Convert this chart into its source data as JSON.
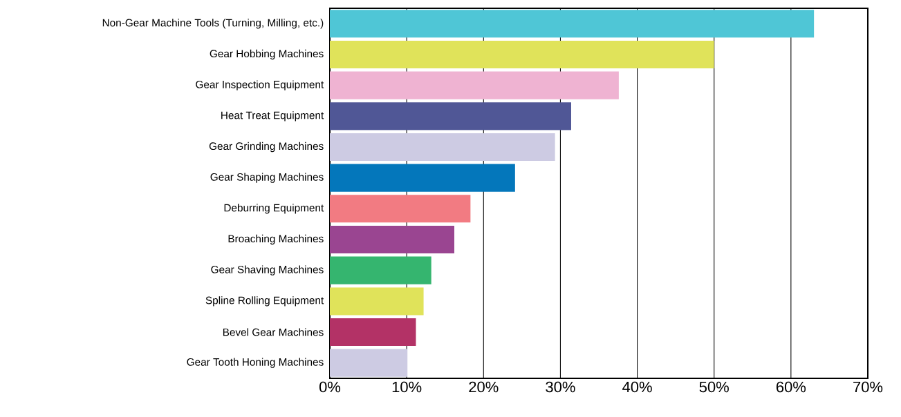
{
  "chart_data": {
    "type": "bar",
    "orientation": "horizontal",
    "categories": [
      "Non-Gear Machine Tools (Turning, Milling, etc.)",
      "Gear Hobbing Machines",
      "Gear Inspection Equipment",
      "Heat Treat Equipment",
      "Gear Grinding Machines",
      "Gear Shaping Machines",
      "Deburring Equipment",
      "Broaching Machines",
      "Gear Shaving Machines",
      "Spline Rolling Equipment",
      "Bevel Gear Machines",
      "Gear Tooth Honing Machines"
    ],
    "values": [
      63,
      50,
      37.6,
      31.4,
      29.3,
      24.1,
      18.3,
      16.2,
      13.2,
      12.2,
      11.2,
      10.1
    ],
    "colors": [
      "#4fc6d6",
      "#e0e35a",
      "#efb3d2",
      "#505796",
      "#cdcbe3",
      "#0477bb",
      "#f27b82",
      "#9a4591",
      "#35b56f",
      "#e0e35a",
      "#b33266",
      "#cdcbe3"
    ],
    "xlim": [
      0,
      70
    ],
    "xticks": [
      {
        "value": 0,
        "label": "0%"
      },
      {
        "value": 10,
        "label": "10%"
      },
      {
        "value": 20,
        "label": "20%"
      },
      {
        "value": 30,
        "label": "30%"
      },
      {
        "value": 40,
        "label": "40%"
      },
      {
        "value": 50,
        "label": "50%"
      },
      {
        "value": 60,
        "label": "60%"
      },
      {
        "value": 70,
        "label": "70%"
      }
    ],
    "grid": "x"
  }
}
